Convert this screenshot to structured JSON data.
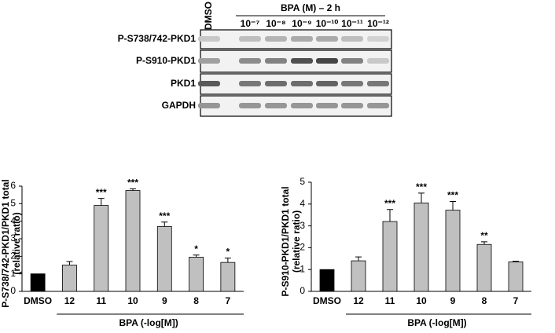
{
  "blot": {
    "control_label": "DMSO",
    "treatment_label": "BPA (M) – 2 h",
    "concentrations": [
      "10⁻⁷",
      "10⁻⁸",
      "10⁻⁹",
      "10⁻¹⁰",
      "10⁻¹¹",
      "10⁻¹²"
    ],
    "rows": [
      "P-S738/742-PKD1",
      "P-S910-PKD1",
      "PKD1",
      "GAPDH"
    ]
  },
  "chart_data": [
    {
      "type": "bar",
      "y_label": [
        "P-S738/742-PKD1/PKD1 total",
        "(relative ratio)"
      ],
      "x_label": "BPA (-log[M])",
      "categories": [
        "DMSO",
        "12",
        "11",
        "10",
        "9",
        "8",
        "7"
      ],
      "values": [
        1,
        1.5,
        4.9,
        5.75,
        3.7,
        1.95,
        1.65
      ],
      "errors": [
        0,
        0.2,
        0.4,
        0.1,
        0.25,
        0.12,
        0.25
      ],
      "annotations": [
        null,
        null,
        "***",
        "***",
        "***",
        "*",
        "*"
      ],
      "colors": [
        "#000000",
        "#c0c0c0",
        "#c0c0c0",
        "#c0c0c0",
        "#c0c0c0",
        "#c0c0c0",
        "#c0c0c0"
      ],
      "ylim": [
        0,
        6
      ],
      "yticks": [
        0,
        1,
        2,
        3,
        4,
        5,
        6
      ]
    },
    {
      "type": "bar",
      "y_label": [
        "P-S910-PKD1/PKD1 total",
        "(relative ratio)"
      ],
      "x_label": "BPA (-log[M])",
      "categories": [
        "DMSO",
        "12",
        "11",
        "10",
        "9",
        "8",
        "7"
      ],
      "values": [
        1,
        1.4,
        3.2,
        4.05,
        3.72,
        2.15,
        1.35
      ],
      "errors": [
        0,
        0.18,
        0.55,
        0.45,
        0.4,
        0.12,
        0.03
      ],
      "annotations": [
        null,
        null,
        "***",
        "***",
        "***",
        "**",
        null
      ],
      "colors": [
        "#000000",
        "#c0c0c0",
        "#c0c0c0",
        "#c0c0c0",
        "#c0c0c0",
        "#c0c0c0",
        "#c0c0c0"
      ],
      "ylim": [
        0,
        5
      ],
      "yticks": [
        0,
        1,
        2,
        3,
        4,
        5
      ]
    }
  ]
}
